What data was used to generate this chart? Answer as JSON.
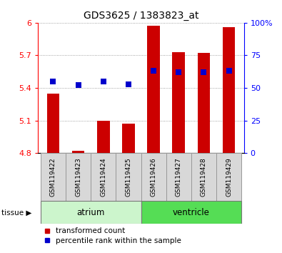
{
  "title": "GDS3625 / 1383823_at",
  "samples": [
    "GSM119422",
    "GSM119423",
    "GSM119424",
    "GSM119425",
    "GSM119426",
    "GSM119427",
    "GSM119428",
    "GSM119429"
  ],
  "transformed_counts": [
    5.35,
    4.82,
    5.1,
    5.07,
    5.97,
    5.73,
    5.72,
    5.96
  ],
  "percentile_ranks": [
    55,
    52,
    55,
    53,
    63,
    62,
    62,
    63
  ],
  "ylim_left": [
    4.8,
    6.0
  ],
  "ylim_right": [
    0,
    100
  ],
  "yticks_left": [
    4.8,
    5.1,
    5.4,
    5.7,
    6.0
  ],
  "yticks_right": [
    0,
    25,
    50,
    75,
    100
  ],
  "ytick_labels_left": [
    "4.8",
    "5.1",
    "5.4",
    "5.7",
    "6"
  ],
  "ytick_labels_right": [
    "0",
    "25",
    "50",
    "75",
    "100%"
  ],
  "bar_color": "#cc0000",
  "dot_color": "#0000cc",
  "base_value": 4.8,
  "tissue_groups": [
    {
      "label": "atrium",
      "start": 0,
      "end": 3,
      "color": "#ccf5cc"
    },
    {
      "label": "ventricle",
      "start": 4,
      "end": 7,
      "color": "#55dd55"
    }
  ],
  "tissue_label": "tissue",
  "legend_bar_label": "transformed count",
  "legend_dot_label": "percentile rank within the sample",
  "grid_color": "#888888",
  "bar_width": 0.5,
  "dot_size": 30
}
